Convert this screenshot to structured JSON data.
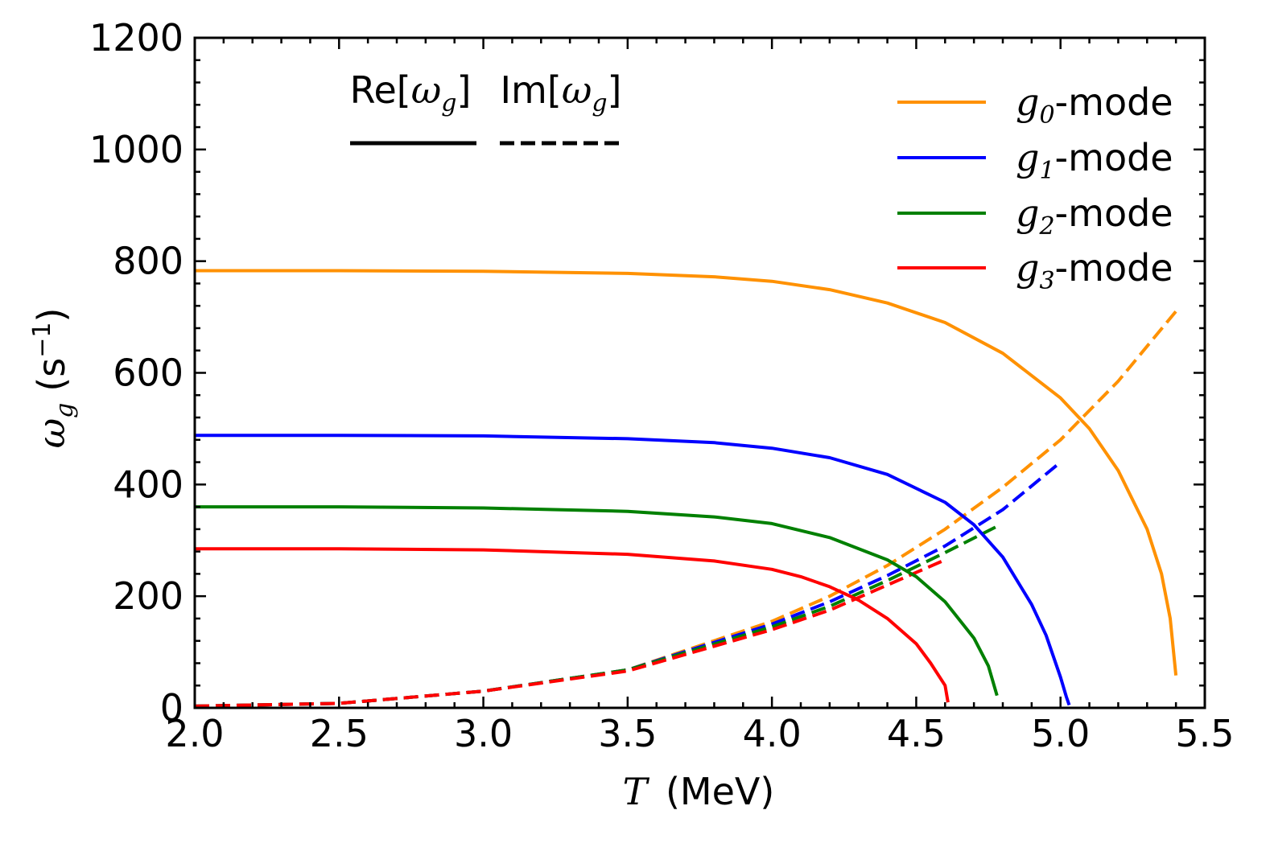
{
  "chart_data": {
    "type": "line",
    "title": "",
    "xlabel": {
      "symbol": "T",
      "unit": "(MeV)"
    },
    "ylabel": {
      "symbol": "ω",
      "subscript": "g",
      "unit": "(s",
      "exponent": "−1",
      "unit_close": ")"
    },
    "xlim": [
      2.0,
      5.5
    ],
    "ylim": [
      0,
      1200
    ],
    "xticks": [
      2.0,
      2.5,
      3.0,
      3.5,
      4.0,
      4.5,
      5.0,
      5.5
    ],
    "xtick_labels": [
      "2.0",
      "2.5",
      "3.0",
      "3.5",
      "4.0",
      "4.5",
      "5.0",
      "5.5"
    ],
    "yticks": [
      0,
      200,
      400,
      600,
      800,
      1000,
      1200
    ],
    "ytick_labels": [
      "0",
      "200",
      "400",
      "600",
      "800",
      "1000",
      "1200"
    ],
    "grid": false,
    "style_legend": {
      "placement": "top-center",
      "entries": [
        {
          "label_prefix": "Re[",
          "symbol": "ω",
          "subscript": "g",
          "label_suffix": "]",
          "linestyle": "solid"
        },
        {
          "label_prefix": "Im[",
          "symbol": "ω",
          "subscript": "g",
          "label_suffix": "]",
          "linestyle": "dashed"
        }
      ]
    },
    "legend": {
      "placement": "top-right",
      "entries": [
        {
          "symbol": "g",
          "subscript": "0",
          "suffix": "-mode",
          "color": "#ff9100"
        },
        {
          "symbol": "g",
          "subscript": "1",
          "suffix": "-mode",
          "color": "#0000ff"
        },
        {
          "symbol": "g",
          "subscript": "2",
          "suffix": "-mode",
          "color": "#008000"
        },
        {
          "symbol": "g",
          "subscript": "3",
          "suffix": "-mode",
          "color": "#ff0000"
        }
      ]
    },
    "series": [
      {
        "name": "g0-mode Re",
        "mode": "g0",
        "part": "Re",
        "color": "#ff9100",
        "linestyle": "solid",
        "x": [
          2.0,
          2.5,
          3.0,
          3.5,
          3.8,
          4.0,
          4.2,
          4.4,
          4.6,
          4.8,
          5.0,
          5.1,
          5.2,
          5.3,
          5.35,
          5.38,
          5.4
        ],
        "y": [
          783,
          783,
          782,
          778,
          772,
          764,
          749,
          725,
          690,
          635,
          555,
          500,
          425,
          320,
          240,
          160,
          58
        ]
      },
      {
        "name": "g0-mode Im",
        "mode": "g0",
        "part": "Im",
        "color": "#ff9100",
        "linestyle": "dashed",
        "x": [
          2.0,
          2.5,
          3.0,
          3.5,
          4.0,
          4.2,
          4.4,
          4.6,
          4.8,
          5.0,
          5.2,
          5.4
        ],
        "y": [
          3,
          8,
          30,
          68,
          155,
          200,
          255,
          320,
          395,
          480,
          585,
          710
        ]
      },
      {
        "name": "g1-mode Re",
        "mode": "g1",
        "part": "Re",
        "color": "#0000ff",
        "linestyle": "solid",
        "x": [
          2.0,
          2.5,
          3.0,
          3.5,
          3.8,
          4.0,
          4.2,
          4.4,
          4.6,
          4.7,
          4.8,
          4.9,
          4.95,
          5.0,
          5.02,
          5.03
        ],
        "y": [
          488,
          488,
          487,
          482,
          475,
          465,
          448,
          418,
          368,
          328,
          270,
          185,
          130,
          55,
          20,
          5
        ]
      },
      {
        "name": "g1-mode Im",
        "mode": "g1",
        "part": "Im",
        "color": "#0000ff",
        "linestyle": "dashed",
        "x": [
          2.0,
          2.5,
          3.0,
          3.5,
          4.0,
          4.2,
          4.4,
          4.6,
          4.8,
          5.0
        ],
        "y": [
          3,
          8,
          30,
          68,
          150,
          190,
          237,
          290,
          355,
          440
        ]
      },
      {
        "name": "g2-mode Re",
        "mode": "g2",
        "part": "Re",
        "color": "#008000",
        "linestyle": "solid",
        "x": [
          2.0,
          2.5,
          3.0,
          3.5,
          3.8,
          4.0,
          4.2,
          4.4,
          4.5,
          4.6,
          4.7,
          4.75,
          4.78
        ],
        "y": [
          360,
          360,
          358,
          352,
          342,
          330,
          305,
          265,
          235,
          190,
          125,
          75,
          22
        ]
      },
      {
        "name": "g2-mode Im",
        "mode": "g2",
        "part": "Im",
        "color": "#008000",
        "linestyle": "dashed",
        "x": [
          2.0,
          2.5,
          3.0,
          3.5,
          4.0,
          4.2,
          4.4,
          4.6,
          4.78
        ],
        "y": [
          3,
          8,
          30,
          68,
          145,
          182,
          228,
          278,
          325
        ]
      },
      {
        "name": "g3-mode Re",
        "mode": "g3",
        "part": "Re",
        "color": "#ff0000",
        "linestyle": "solid",
        "x": [
          2.0,
          2.5,
          3.0,
          3.5,
          3.8,
          4.0,
          4.1,
          4.2,
          4.3,
          4.4,
          4.5,
          4.55,
          4.6,
          4.61
        ],
        "y": [
          285,
          285,
          283,
          275,
          263,
          248,
          235,
          217,
          193,
          160,
          115,
          80,
          40,
          10
        ]
      },
      {
        "name": "g3-mode Im",
        "mode": "g3",
        "part": "Im",
        "color": "#ff0000",
        "linestyle": "dashed",
        "x": [
          2.0,
          2.5,
          3.0,
          3.5,
          4.0,
          4.2,
          4.4,
          4.6
        ],
        "y": [
          3,
          8,
          30,
          66,
          140,
          175,
          220,
          265
        ]
      }
    ]
  }
}
